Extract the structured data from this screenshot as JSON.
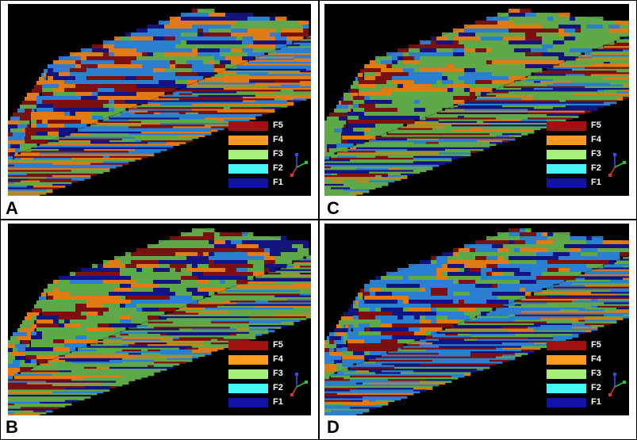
{
  "figure": {
    "panels": [
      {
        "label": "A",
        "palette_bias": "F4"
      },
      {
        "label": "C",
        "palette_bias": "F3"
      },
      {
        "label": "B",
        "palette_bias": "F3"
      },
      {
        "label": "D",
        "palette_bias": "F2"
      }
    ],
    "legend": [
      {
        "label": "F5",
        "color": "#a01212"
      },
      {
        "label": "F4",
        "color": "#ff9a1e"
      },
      {
        "label": "F3",
        "color": "#a6f07a"
      },
      {
        "label": "F2",
        "color": "#46f5f5"
      },
      {
        "label": "F1",
        "color": "#1212a8"
      }
    ],
    "model_colors": {
      "background": "#000000",
      "blue": "#2a7fd0",
      "green": "#5fa84a",
      "orange": "#e07a12",
      "red": "#7a1010",
      "navy": "#141480"
    },
    "axes_icon": {
      "x_color": "#e03030",
      "y_color": "#30c030",
      "z_color": "#3050e0"
    }
  }
}
